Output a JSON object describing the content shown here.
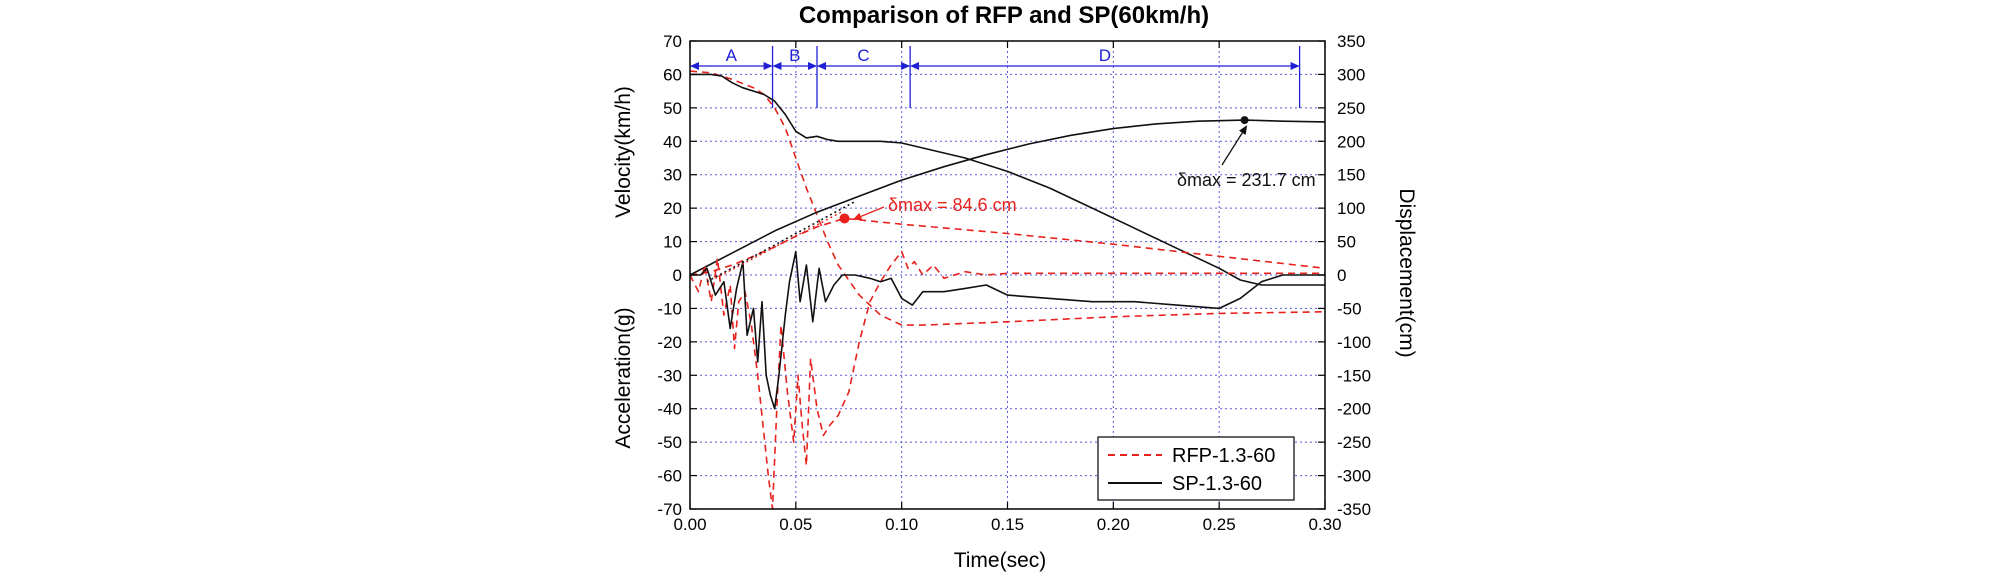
{
  "chart_data": {
    "type": "line",
    "title": "Comparison of RFP and SP(60km/h)",
    "xlabel": "Time(sec)",
    "ylabel_left_top": "Velocity(km/h)",
    "ylabel_left_bottom": "Acceleration(g)",
    "ylabel_right": "Displacement(cm)",
    "xlim": [
      0,
      0.3
    ],
    "ylim_left": [
      -70,
      70
    ],
    "ylim_right": [
      -350,
      350
    ],
    "x_ticks": [
      "0.00",
      "0.05",
      "0.10",
      "0.15",
      "0.20",
      "0.25",
      "0.30"
    ],
    "y_left_ticks": [
      "70",
      "60",
      "50",
      "40",
      "30",
      "20",
      "10",
      "0",
      "-10",
      "-20",
      "-30",
      "-40",
      "-50",
      "-60",
      "-70"
    ],
    "y_right_ticks": [
      "350",
      "300",
      "250",
      "200",
      "150",
      "100",
      "50",
      "0",
      "-50",
      "-100",
      "-150",
      "-200",
      "-250",
      "-300",
      "-350"
    ],
    "grid": true,
    "legend_position": "bottom-right",
    "colors": {
      "rfp": "#e8211d",
      "sp": "#111111",
      "phase": "#1f1fd6",
      "grid": "#5a5ad8"
    },
    "phases": [
      {
        "label": "A",
        "start": 0.0,
        "end": 0.039
      },
      {
        "label": "B",
        "start": 0.039,
        "end": 0.06
      },
      {
        "label": "C",
        "start": 0.06,
        "end": 0.104
      },
      {
        "label": "D",
        "start": 0.104,
        "end": 0.288
      }
    ],
    "series": [
      {
        "name": "RFP-1.3-60",
        "style": "dashed",
        "color": "#e8211d"
      },
      {
        "name": "SP-1.3-60",
        "style": "solid",
        "color": "#111111"
      }
    ],
    "curves": [
      {
        "series": "RFP-1.3-60",
        "quantity": "velocity",
        "axis": "left",
        "x": [
          0,
          0.01,
          0.02,
          0.03,
          0.035,
          0.04,
          0.045,
          0.05,
          0.055,
          0.06,
          0.065,
          0.07,
          0.08,
          0.09,
          0.1,
          0.11,
          0.15,
          0.2,
          0.25,
          0.3
        ],
        "y": [
          61,
          60.5,
          58.5,
          56,
          54,
          50,
          44,
          35,
          26,
          18,
          10,
          3,
          -6,
          -12,
          -15,
          -15,
          -14,
          -12.5,
          -11.5,
          -11
        ]
      },
      {
        "series": "SP-1.3-60",
        "quantity": "velocity",
        "axis": "left",
        "x": [
          0,
          0.01,
          0.015,
          0.02,
          0.025,
          0.03,
          0.035,
          0.04,
          0.045,
          0.05,
          0.055,
          0.06,
          0.065,
          0.07,
          0.08,
          0.09,
          0.1,
          0.11,
          0.13,
          0.15,
          0.17,
          0.19,
          0.21,
          0.23,
          0.25,
          0.26,
          0.27,
          0.3
        ],
        "y": [
          60,
          60,
          59.5,
          57.5,
          56,
          55,
          54,
          52,
          48,
          43,
          41,
          41.5,
          40.5,
          40,
          40,
          40,
          39.5,
          38,
          35,
          31,
          26,
          20,
          14,
          8,
          2,
          -1.5,
          -3,
          -3
        ]
      },
      {
        "series": "RFP-1.3-60",
        "quantity": "displacement",
        "axis": "right",
        "x": [
          0,
          0.01,
          0.02,
          0.03,
          0.04,
          0.05,
          0.06,
          0.073,
          0.1,
          0.15,
          0.2,
          0.25,
          0.3
        ],
        "y": [
          0,
          5,
          15,
          28,
          42,
          58,
          72,
          84.6,
          76,
          62,
          46,
          28,
          10
        ]
      },
      {
        "series": "SP-1.3-60",
        "quantity": "displacement",
        "axis": "right",
        "x": [
          0,
          0.02,
          0.04,
          0.06,
          0.08,
          0.1,
          0.12,
          0.14,
          0.16,
          0.18,
          0.2,
          0.22,
          0.24,
          0.262,
          0.28,
          0.3
        ],
        "y": [
          0,
          33,
          66,
          94,
          118,
          142,
          162,
          180,
          196,
          209,
          219,
          226,
          230,
          231.7,
          230,
          229
        ]
      },
      {
        "series": "RFP-1.3-60",
        "quantity": "acceleration",
        "axis": "left",
        "x": [
          0,
          0.004,
          0.007,
          0.01,
          0.013,
          0.016,
          0.019,
          0.021,
          0.023,
          0.026,
          0.029,
          0.032,
          0.035,
          0.037,
          0.039,
          0.041,
          0.043,
          0.046,
          0.049,
          0.051,
          0.053,
          0.055,
          0.057,
          0.06,
          0.063,
          0.066,
          0.07,
          0.075,
          0.08,
          0.085,
          0.09,
          0.095,
          0.1,
          0.103,
          0.106,
          0.11,
          0.115,
          0.12,
          0.13,
          0.14,
          0.15,
          0.17,
          0.2,
          0.23,
          0.26,
          0.3
        ],
        "y": [
          0,
          -5,
          3,
          -8,
          5,
          -12,
          -3,
          -22,
          -8,
          -5,
          -15,
          -30,
          -48,
          -60,
          -70,
          -40,
          -15,
          -35,
          -50,
          -30,
          -45,
          -57,
          -25,
          -40,
          -48,
          -45,
          -42,
          -35,
          -20,
          -8,
          -2,
          3,
          7,
          2,
          4,
          0,
          3,
          -1,
          1,
          0,
          0.5,
          0.5,
          0.5,
          0.5,
          0.5,
          0.5
        ]
      },
      {
        "series": "SP-1.3-60",
        "quantity": "acceleration",
        "axis": "left",
        "x": [
          0,
          0.005,
          0.008,
          0.012,
          0.016,
          0.019,
          0.022,
          0.025,
          0.027,
          0.03,
          0.032,
          0.034,
          0.036,
          0.038,
          0.04,
          0.042,
          0.045,
          0.047,
          0.05,
          0.052,
          0.055,
          0.058,
          0.061,
          0.064,
          0.068,
          0.072,
          0.078,
          0.085,
          0.09,
          0.095,
          0.1,
          0.105,
          0.11,
          0.12,
          0.13,
          0.14,
          0.15,
          0.17,
          0.19,
          0.21,
          0.23,
          0.25,
          0.26,
          0.27,
          0.28,
          0.3
        ],
        "y": [
          0,
          0,
          2,
          -6,
          -2,
          -16,
          -4,
          4,
          -18,
          -10,
          -26,
          -8,
          -30,
          -36,
          -40,
          -30,
          -12,
          -2,
          7,
          -8,
          3,
          -14,
          2,
          -8,
          -3,
          0,
          0,
          -1,
          -2,
          -1,
          -7,
          -9,
          -5,
          -5,
          -4,
          -3,
          -6,
          -7,
          -8,
          -8,
          -9,
          -10,
          -7,
          -2,
          0,
          0
        ]
      }
    ],
    "annotations": [
      {
        "series": "RFP-1.3-60",
        "text": "δmax = 84.6 cm",
        "x": 0.073,
        "y_right": 84.6,
        "color": "#e8211d"
      },
      {
        "series": "SP-1.3-60",
        "text": "δmax = 231.7 cm",
        "x": 0.262,
        "y_right": 231.7,
        "color": "#111111"
      }
    ]
  }
}
